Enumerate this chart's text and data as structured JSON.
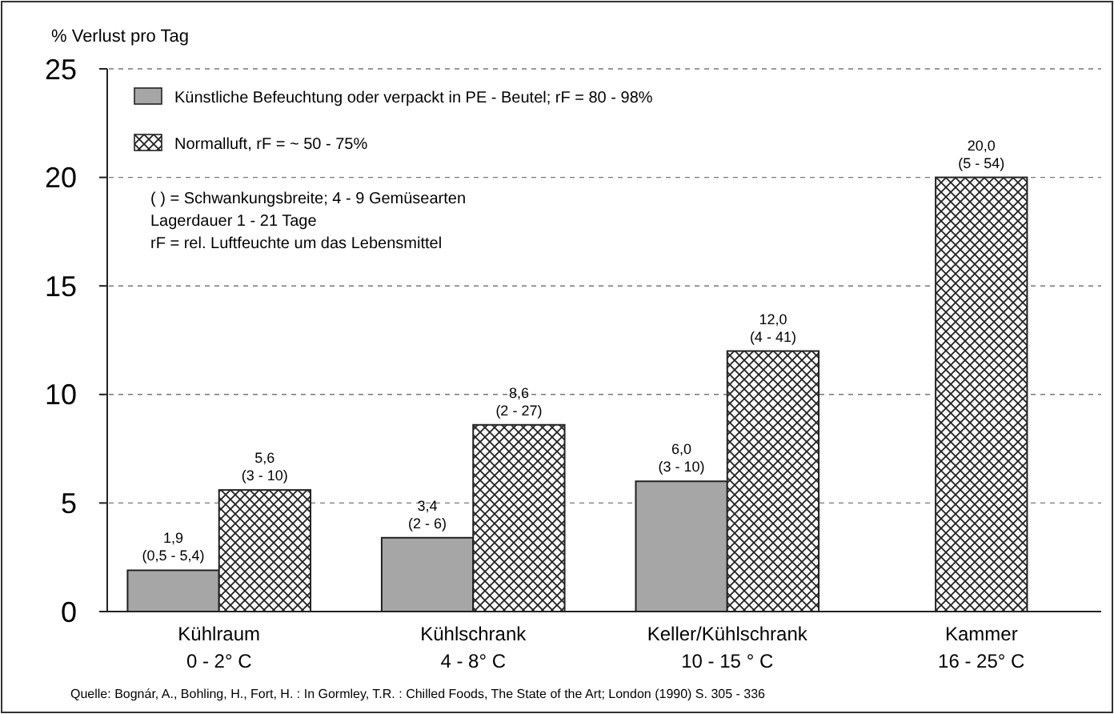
{
  "chart_data": {
    "type": "bar",
    "ylabel": "% Verlust  pro Tag",
    "categories": [
      "Kühlraum\n0 - 2° C",
      "Kühlschrank\n4 - 8° C",
      "Keller/Kühlschrank\n10 - 15 ° C",
      "Kammer\n16 - 25° C"
    ],
    "series": [
      {
        "name": "Künstliche Befeuchtung oder verpackt in PE - Beutel; rF = 80 - 98%",
        "color": "#a6a6a6",
        "values": [
          1.9,
          3.4,
          6.0,
          null
        ],
        "value_labels": [
          "1,9\n(0,5 - 5,4)",
          "3,4\n(2 - 6)",
          "6,0\n(3 - 10)",
          null
        ]
      },
      {
        "name": "Normalluft, rF = ~ 50 - 75%",
        "color": "#222222",
        "values": [
          5.6,
          8.6,
          12.0,
          20.0
        ],
        "value_labels": [
          "5,6\n(3 - 10)",
          "8,6\n(2 - 27)",
          "12,0\n(4 - 41)",
          "20,0\n(5 - 54)"
        ]
      }
    ],
    "ylim": [
      0,
      25
    ],
    "yticks": [
      0,
      5,
      10,
      15,
      20,
      25
    ],
    "grid": "y",
    "legend": "top left",
    "annotations": [
      "( ) = Schwankungsbreite; 4 - 9  Gemüsearten",
      "Lagerdauer 1 - 21 Tage",
      "rF = rel. Luftfeuchte um das Lebensmittel",
      "Quelle: Bognár, A., Bohling, H., Fort, H. : In Gormley, T.R. : Chilled Foods, The State of  the Art;  London (1990)  S. 305 - 336"
    ]
  }
}
